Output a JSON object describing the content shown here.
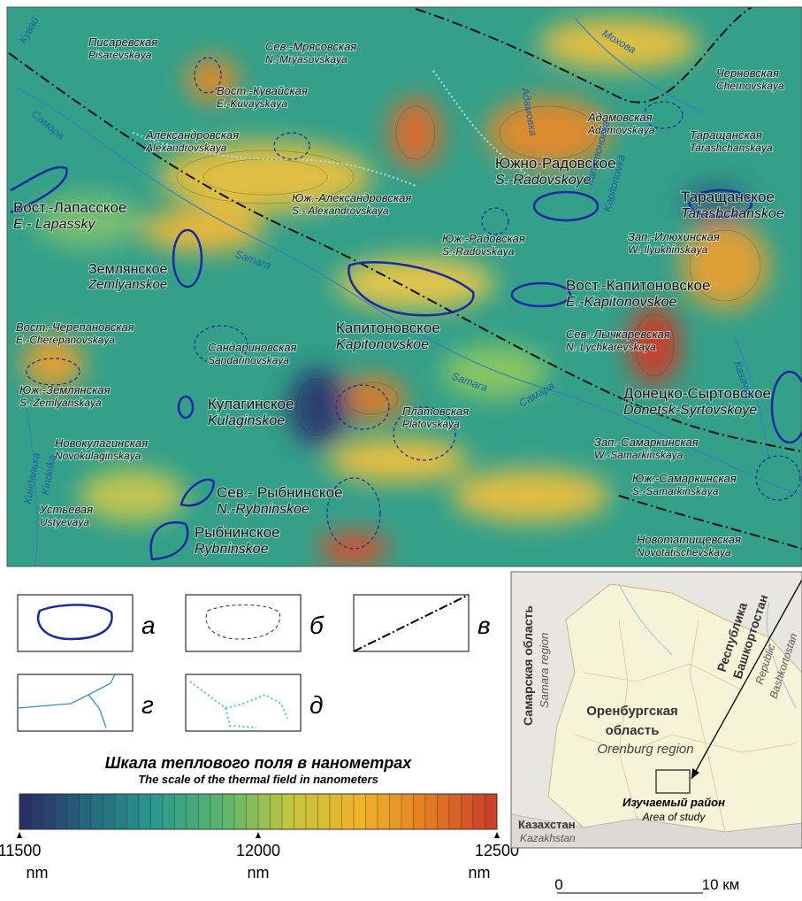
{
  "map": {
    "fields": [
      {
        "ru": "Писаревская",
        "en": "Pisarevskaya"
      },
      {
        "ru": "Сев.-Мрясовская",
        "en": "N.-Mryasovskaya"
      },
      {
        "ru": "Вост.-Кувайская",
        "en": "E.-Kuvayskaya"
      },
      {
        "ru": "Александровская",
        "en": "Alexandrovskaya"
      },
      {
        "ru": "Южно-Радовское",
        "en": "S.-Radovskoye"
      },
      {
        "ru": "Таращанское",
        "en": "Tarashchanskoe"
      },
      {
        "ru": "Вост.-Лапасское",
        "en": "E.- Lapassky"
      },
      {
        "ru": "Юж.-Александровская",
        "en": "S.- Alexandrovskaya"
      },
      {
        "ru": "Юж.-Радовская",
        "en": "S.-Radovskaya"
      },
      {
        "ru": "Зап.-Илюхинская",
        "en": "W.-Ilyukhinskaya"
      },
      {
        "ru": "Землянское",
        "en": "Zemlyanskoe"
      },
      {
        "ru": "Вост.-Капитоновское",
        "en": "E.-Kapitonovskoe"
      },
      {
        "ru": "Капитоновское",
        "en": "Kapitonovskoe"
      },
      {
        "ru": "Вост.-Черепановская",
        "en": "E.-Cherepanovskaya"
      },
      {
        "ru": "Сандариновская",
        "en": "Sandarinovskaya"
      },
      {
        "ru": "Сев.-Лычкаревская",
        "en": "N.-Lychkarevskaya"
      },
      {
        "ru": "Юж.-Землянская",
        "en": "S.-Zemlyanskaya"
      },
      {
        "ru": "Кулагинское",
        "en": "Kulaginskoe"
      },
      {
        "ru": "Донецко-Сыртовское",
        "en": "Donetsk-Syrtovskoye"
      },
      {
        "ru": "Платовская",
        "en": "Platovskaya"
      },
      {
        "ru": "Новокулагинская",
        "en": "Novokulaginskaya"
      },
      {
        "ru": "Зап.-Самаркинская",
        "en": "W.-Samarkinskaya"
      },
      {
        "ru": "Юж.-Самаркинская",
        "en": "S.-Samarkinskaya"
      },
      {
        "ru": "Сев.- Рыбнинское",
        "en": "N.-Rybninskoe"
      },
      {
        "ru": "Устьевая",
        "en": "Ustyevaya"
      },
      {
        "ru": "Рыбнинское",
        "en": "Rybninskoe"
      },
      {
        "ru": "Новотатищевская",
        "en": "Novotatischevskaya"
      },
      {
        "ru": "Черновская",
        "en": "Chernovskaya"
      },
      {
        "ru": "Адамовская",
        "en": "Adamovskaya"
      },
      {
        "ru": "Таращанская",
        "en": "Tarashchanskaya"
      }
    ],
    "rivers": [
      "Кувай",
      "Самара",
      "Samara",
      "Samara",
      "Самара",
      "Мохова",
      "Адамовка",
      "Капитоновка",
      "Kapitonovka",
      "Кинделька",
      "Kindelka",
      "Казачка"
    ]
  },
  "legend": [
    "а",
    "б",
    "в",
    "г",
    "д"
  ],
  "colorbar": {
    "title": "Шкала теплового поля в нанометрах",
    "subtitle": "The scale of the thermal field in nanometers",
    "range": [
      11500,
      12500
    ],
    "ticks": [
      11500,
      12000,
      12500
    ],
    "unit": "nm",
    "colors": [
      "#2b2a63",
      "#24667e",
      "#2a9a8c",
      "#5cb56e",
      "#c4c63e",
      "#f0b42a",
      "#e37b22",
      "#c83a2a"
    ]
  },
  "inset": {
    "samara_ru": "Самарская область",
    "samara_en": "Samara region",
    "bash_ru_1": "Республика",
    "bash_ru_2": "Башкортостан",
    "bash_en_1": "Republic",
    "bash_en_2": "Bashkortostan",
    "oren_ru_1": "Оренбургская",
    "oren_ru_2": "область",
    "oren_en": "Orenburg region",
    "study_ru": "Изучаемый район",
    "study_en": "Area of study",
    "kaz_ru": "Казахстан",
    "kaz_en": "Kazakhstan"
  },
  "scale_bar": {
    "start": "0",
    "end": "10 км"
  }
}
